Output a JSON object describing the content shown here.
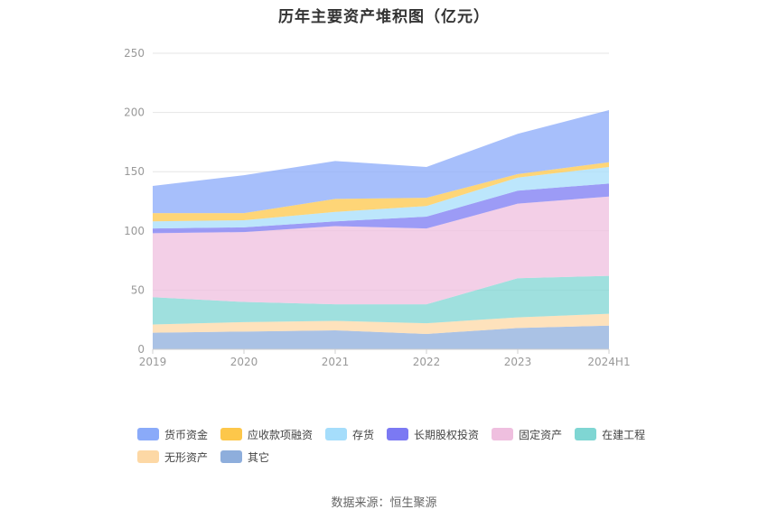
{
  "source_label": "数据来源：恒生聚源",
  "chart_data": {
    "type": "area",
    "stacked": true,
    "title": "历年主要资产堆积图（亿元）",
    "xlabel": "",
    "ylabel": "",
    "x": [
      "2019",
      "2020",
      "2021",
      "2022",
      "2023",
      "2024H1"
    ],
    "ylim": [
      0,
      250
    ],
    "yticks": [
      0,
      50,
      100,
      150,
      200,
      250
    ],
    "grid": true,
    "legend_position": "bottom",
    "series": [
      {
        "name": "其它",
        "color": "#8eaedc",
        "values": [
          14,
          15,
          16,
          13,
          18,
          20
        ]
      },
      {
        "name": "无形资产",
        "color": "#fdd8a5",
        "values": [
          7,
          8,
          8,
          9,
          9,
          10
        ]
      },
      {
        "name": "在建工程",
        "color": "#7fd6d3",
        "values": [
          23,
          17,
          14,
          16,
          33,
          32
        ]
      },
      {
        "name": "固定资产",
        "color": "#efbfdf",
        "values": [
          54,
          59,
          66,
          64,
          63,
          67
        ]
      },
      {
        "name": "长期股权投资",
        "color": "#7b79f3",
        "values": [
          4,
          4,
          4,
          10,
          11,
          11
        ]
      },
      {
        "name": "存货",
        "color": "#a5ddfb",
        "values": [
          6,
          6,
          8,
          9,
          11,
          14
        ]
      },
      {
        "name": "应收款项融资",
        "color": "#fdc74a",
        "values": [
          7,
          6,
          11,
          7,
          3,
          4
        ]
      },
      {
        "name": "货币资金",
        "color": "#8aaaf9",
        "values": [
          23,
          32,
          32,
          26,
          34,
          44
        ]
      }
    ],
    "legend_order": [
      "货币资金",
      "应收款项融资",
      "存货",
      "长期股权投资",
      "固定资产",
      "在建工程",
      "无形资产",
      "其它"
    ]
  }
}
